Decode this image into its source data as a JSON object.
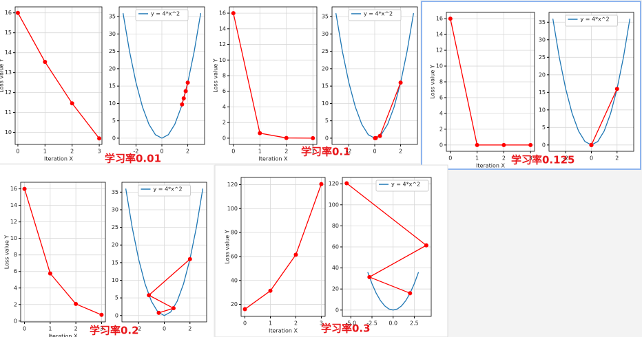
{
  "chart_data": [
    {
      "type": "line",
      "xlabel": "Iteration X",
      "ylabel": "Loss value Y",
      "annotation": "学习率0.01",
      "grid": true,
      "xlim": [
        -0.1,
        3.1
      ],
      "xticks": [
        0,
        1,
        2,
        3
      ],
      "ylim": [
        9.4,
        16.3
      ],
      "yticks": [
        10,
        11,
        12,
        13,
        14,
        15,
        16
      ],
      "series": [
        {
          "color": "#ff0000",
          "marker": "o",
          "x": [
            0,
            1,
            2,
            3
          ],
          "values": [
            16,
            13.54,
            11.46,
            9.7
          ]
        }
      ]
    },
    {
      "type": "line",
      "grid": true,
      "legend": "upper center",
      "xlim": [
        -3.3,
        3.3
      ],
      "xticks": [
        -2,
        0,
        2
      ],
      "ylim": [
        -1.8,
        37.8
      ],
      "yticks": [
        0,
        5,
        10,
        15,
        20,
        25,
        30,
        35
      ],
      "series": [
        {
          "name": "y = 4*x^2",
          "color": "#1f77b4",
          "x": [
            -3,
            -2.5,
            -2,
            -1.5,
            -1,
            -0.5,
            0,
            0.5,
            1,
            1.5,
            2,
            2.5,
            3
          ],
          "values": [
            36,
            25,
            16,
            9,
            4,
            1,
            0,
            1,
            4,
            9,
            16,
            25,
            36
          ]
        },
        {
          "color": "#ff0000",
          "marker": "o",
          "x": [
            2,
            1.84,
            1.69,
            1.56
          ],
          "values": [
            16,
            13.54,
            11.46,
            9.7
          ]
        }
      ]
    },
    {
      "type": "line",
      "xlabel": "Iteration X",
      "ylabel": "Loss value Y",
      "annotation": "学习率0.1",
      "grid": true,
      "xlim": [
        -0.15,
        3.15
      ],
      "xticks": [
        0,
        1,
        2,
        3
      ],
      "ylim": [
        -0.8,
        16.8
      ],
      "yticks": [
        0,
        2,
        4,
        6,
        8,
        10,
        12,
        14,
        16
      ],
      "series": [
        {
          "color": "#ff0000",
          "marker": "o",
          "x": [
            0,
            1,
            2,
            3
          ],
          "values": [
            16,
            0.64,
            0.03,
            0
          ]
        }
      ]
    },
    {
      "type": "line",
      "grid": true,
      "legend": "upper center",
      "xlim": [
        -3.3,
        3.3
      ],
      "xticks": [
        -2,
        0,
        2
      ],
      "ylim": [
        -1.8,
        37.8
      ],
      "yticks": [
        0,
        5,
        10,
        15,
        20,
        25,
        30,
        35
      ],
      "series": [
        {
          "name": "y = 4*x^2",
          "color": "#1f77b4",
          "x": [
            -3,
            -2.5,
            -2,
            -1.5,
            -1,
            -0.5,
            0,
            0.5,
            1,
            1.5,
            2,
            2.5,
            3
          ],
          "values": [
            36,
            25,
            16,
            9,
            4,
            1,
            0,
            1,
            4,
            9,
            16,
            25,
            36
          ]
        },
        {
          "color": "#ff0000",
          "marker": "o",
          "x": [
            2,
            0.4,
            0.08,
            0.02
          ],
          "values": [
            16,
            0.64,
            0.03,
            0
          ]
        }
      ]
    },
    {
      "type": "line",
      "xlabel": "Iteration X",
      "ylabel": "Loss value Y",
      "annotation": "学习率0.125",
      "grid": true,
      "xlim": [
        -0.15,
        3.15
      ],
      "xticks": [
        0,
        1,
        2,
        3
      ],
      "ylim": [
        -0.8,
        16.8
      ],
      "yticks": [
        0,
        2,
        4,
        6,
        8,
        10,
        12,
        14,
        16
      ],
      "series": [
        {
          "color": "#ff0000",
          "marker": "o",
          "x": [
            0,
            1,
            2,
            3
          ],
          "values": [
            16,
            0,
            0,
            0
          ]
        }
      ]
    },
    {
      "type": "line",
      "grid": true,
      "legend": "upper center",
      "xlim": [
        -3.3,
        3.3
      ],
      "xticks": [
        -2,
        0,
        2
      ],
      "ylim": [
        -1.8,
        37.8
      ],
      "yticks": [
        0,
        5,
        10,
        15,
        20,
        25,
        30,
        35
      ],
      "series": [
        {
          "name": "y = 4*x^2",
          "color": "#1f77b4",
          "x": [
            -3,
            -2.5,
            -2,
            -1.5,
            -1,
            -0.5,
            0,
            0.5,
            1,
            1.5,
            2,
            2.5,
            3
          ],
          "values": [
            36,
            25,
            16,
            9,
            4,
            1,
            0,
            1,
            4,
            9,
            16,
            25,
            36
          ]
        },
        {
          "color": "#ff0000",
          "marker": "o",
          "x": [
            2,
            0,
            0,
            0
          ],
          "values": [
            16,
            0,
            0,
            0
          ]
        }
      ]
    },
    {
      "type": "line",
      "xlabel": "Iteration X",
      "ylabel": "Loss value Y",
      "annotation": "学习率0.2",
      "grid": true,
      "xlim": [
        -0.15,
        3.15
      ],
      "xticks": [
        0,
        1,
        2,
        3
      ],
      "ylim": [
        -0.1,
        16.8
      ],
      "yticks": [
        0,
        2,
        4,
        6,
        8,
        10,
        12,
        14,
        16
      ],
      "series": [
        {
          "color": "#ff0000",
          "marker": "o",
          "x": [
            0,
            1,
            2,
            3
          ],
          "values": [
            16,
            5.76,
            2.07,
            0.75
          ]
        }
      ]
    },
    {
      "type": "line",
      "grid": true,
      "legend": "upper center",
      "xlim": [
        -3.3,
        3.3
      ],
      "xticks": [
        -2,
        0,
        2
      ],
      "ylim": [
        -1.8,
        37.8
      ],
      "yticks": [
        0,
        5,
        10,
        15,
        20,
        25,
        30,
        35
      ],
      "series": [
        {
          "name": "y = 4*x^2",
          "color": "#1f77b4",
          "x": [
            -3,
            -2.5,
            -2,
            -1.5,
            -1,
            -0.5,
            0,
            0.5,
            1,
            1.5,
            2,
            2.5,
            3
          ],
          "values": [
            36,
            25,
            16,
            9,
            4,
            1,
            0,
            1,
            4,
            9,
            16,
            25,
            36
          ]
        },
        {
          "color": "#ff0000",
          "marker": "o",
          "x": [
            2,
            -1.2,
            0.72,
            -0.43
          ],
          "values": [
            16,
            5.76,
            2.07,
            0.75
          ]
        }
      ]
    },
    {
      "type": "line",
      "xlabel": "Iteration X",
      "ylabel": "Loss value Y",
      "annotation": "学习率0.3",
      "grid": true,
      "xlim": [
        -0.15,
        3.15
      ],
      "xticks": [
        0,
        1,
        2,
        3
      ],
      "ylim": [
        10,
        126
      ],
      "yticks": [
        20,
        40,
        60,
        80,
        100,
        120
      ],
      "series": [
        {
          "color": "#ff0000",
          "marker": "o",
          "x": [
            0,
            1,
            2,
            3
          ],
          "values": [
            16,
            31.36,
            61.47,
            120.47
          ]
        }
      ]
    },
    {
      "type": "line",
      "grid": true,
      "legend": "upper right",
      "xlim": [
        -6,
        4.5
      ],
      "xticks": [
        {
          "value": -5,
          "label": "-5.0"
        },
        {
          "value": -2.5,
          "label": "-2.5"
        },
        {
          "value": 0,
          "label": "0.0"
        },
        {
          "value": 2.5,
          "label": "2.5"
        }
      ],
      "ylim": [
        -6,
        126
      ],
      "yticks": [
        0,
        20,
        40,
        60,
        80,
        100,
        120
      ],
      "series": [
        {
          "name": "y = 4*x^2",
          "color": "#1f77b4",
          "x": [
            -3,
            -2.5,
            -2,
            -1.5,
            -1,
            -0.5,
            0,
            0.5,
            1,
            1.5,
            2,
            2.5,
            3
          ],
          "values": [
            36,
            25,
            16,
            9,
            4,
            1,
            0,
            1,
            4,
            9,
            16,
            25,
            36
          ]
        },
        {
          "color": "#ff0000",
          "marker": "o",
          "x": [
            2,
            -2.8,
            3.92,
            -5.49
          ],
          "values": [
            16,
            31.36,
            61.47,
            120.47
          ]
        }
      ]
    }
  ]
}
